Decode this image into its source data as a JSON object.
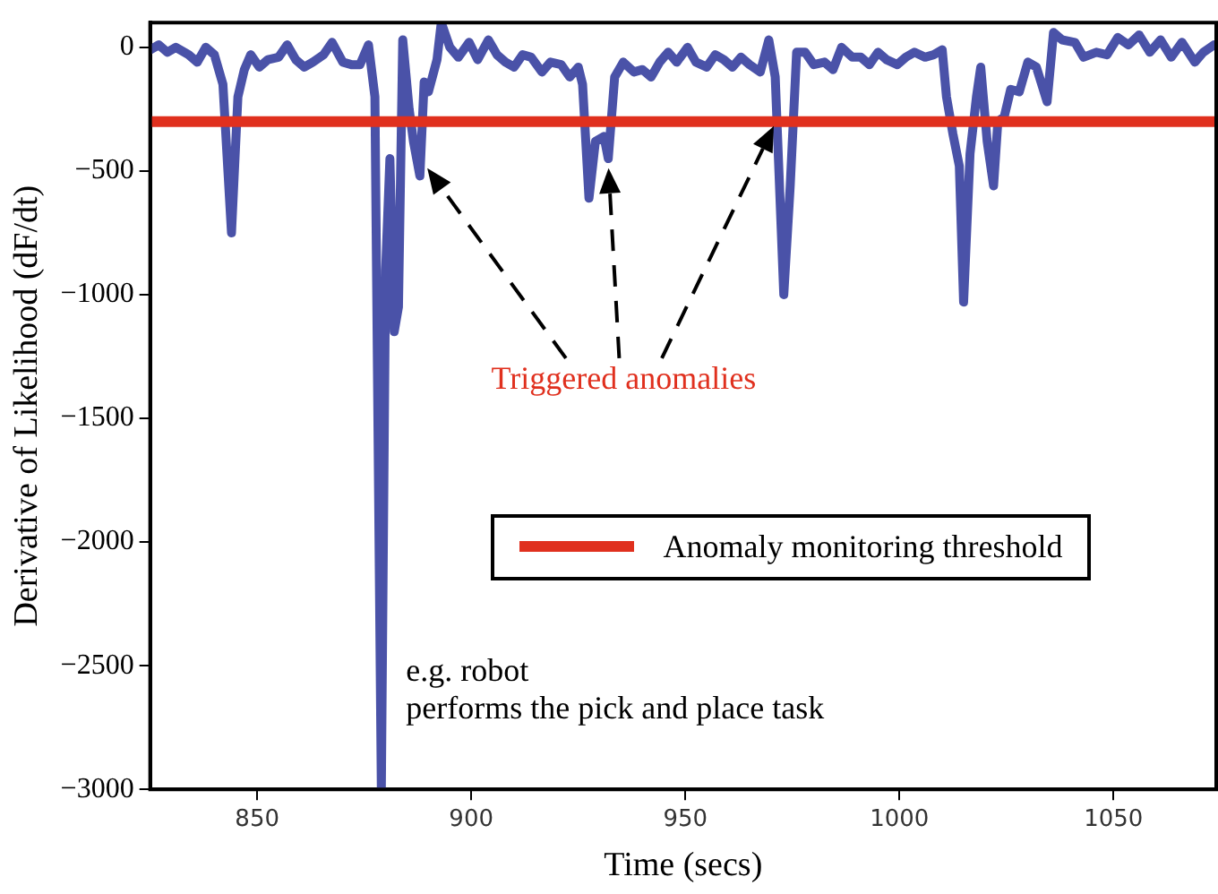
{
  "chart_data": {
    "type": "line",
    "xlabel": "Time (secs)",
    "ylabel": "Derivative of Likelihood (dF/dt)",
    "xlim": [
      825,
      1074
    ],
    "xticks": [
      850,
      900,
      950,
      1000,
      1050
    ],
    "ylim": [
      -3000,
      100
    ],
    "yticks": [
      -3000,
      -2500,
      -2000,
      -1500,
      -1000,
      -500,
      0
    ],
    "grid": false,
    "legend": "center right",
    "marker": "none",
    "line_style": "solid",
    "series": [
      {
        "color": "#4a52a8",
        "x": [
          825,
          827,
          829,
          831,
          834,
          836,
          838,
          840,
          842,
          844,
          845.5,
          847,
          848.5,
          850.5,
          852.5,
          855,
          857,
          859,
          861,
          863,
          865.5,
          867.5,
          870,
          872,
          874,
          876,
          877.5,
          879,
          880,
          881,
          882,
          883,
          884,
          885.5,
          886.5,
          888,
          889,
          890,
          892,
          893,
          895,
          897,
          899.5,
          901.5,
          904,
          906,
          908,
          910,
          912,
          914,
          916.5,
          918.5,
          921,
          923,
          925,
          926,
          927.5,
          929,
          931,
          932,
          933.5,
          935.5,
          938,
          940,
          942,
          944,
          946,
          948,
          950.5,
          952.5,
          955,
          957,
          959,
          961,
          963,
          965,
          967.5,
          969.5,
          971,
          973,
          974.5,
          976,
          978,
          980,
          982.5,
          984.5,
          986.5,
          989,
          991,
          993,
          995,
          997,
          999.5,
          1001.5,
          1003.5,
          1006,
          1008,
          1010,
          1011,
          1012.5,
          1014,
          1015,
          1016.5,
          1018,
          1019,
          1020.5,
          1022,
          1023,
          1024.5,
          1026,
          1028,
          1030,
          1032,
          1034.5,
          1036,
          1038,
          1041,
          1043,
          1046,
          1048.5,
          1051,
          1053.5,
          1056,
          1058.5,
          1061,
          1063.5,
          1066,
          1069,
          1071,
          1073.5
        ],
        "values": [
          -10,
          10,
          -20,
          0,
          -30,
          -60,
          0,
          -30,
          -150,
          -750,
          -200,
          -90,
          -30,
          -80,
          -50,
          -40,
          10,
          -50,
          -80,
          -60,
          -30,
          20,
          -60,
          -70,
          -70,
          10,
          -200,
          -3000,
          -900,
          -450,
          -1150,
          -1050,
          30,
          -250,
          -380,
          -520,
          -140,
          -180,
          -50,
          100,
          0,
          -40,
          20,
          -50,
          30,
          -30,
          -60,
          -80,
          -30,
          -40,
          -100,
          -60,
          -70,
          -120,
          -80,
          -150,
          -610,
          -380,
          -360,
          -450,
          -120,
          -60,
          -100,
          -90,
          -120,
          -60,
          -20,
          -60,
          0,
          -60,
          -80,
          -30,
          -50,
          -80,
          -40,
          -70,
          -100,
          30,
          -120,
          -1000,
          -560,
          -20,
          -20,
          -70,
          -60,
          -90,
          0,
          -40,
          -40,
          -70,
          -20,
          -50,
          -70,
          -40,
          -20,
          -40,
          -30,
          -10,
          -200,
          -350,
          -480,
          -1030,
          -430,
          -200,
          -80,
          -380,
          -560,
          -300,
          -280,
          -170,
          -180,
          -60,
          -80,
          -220,
          60,
          30,
          20,
          -40,
          -20,
          -30,
          40,
          10,
          50,
          -20,
          30,
          -40,
          20,
          -60,
          -20,
          10
        ]
      }
    ],
    "ref_lines": [
      {
        "axis": "y",
        "value": -300,
        "label": "Anomaly monitoring threshold",
        "color": "#e0301e"
      }
    ],
    "annotations": [
      "Triggered anomalies",
      "e.g. robot\nperforms the pick and place task"
    ]
  }
}
